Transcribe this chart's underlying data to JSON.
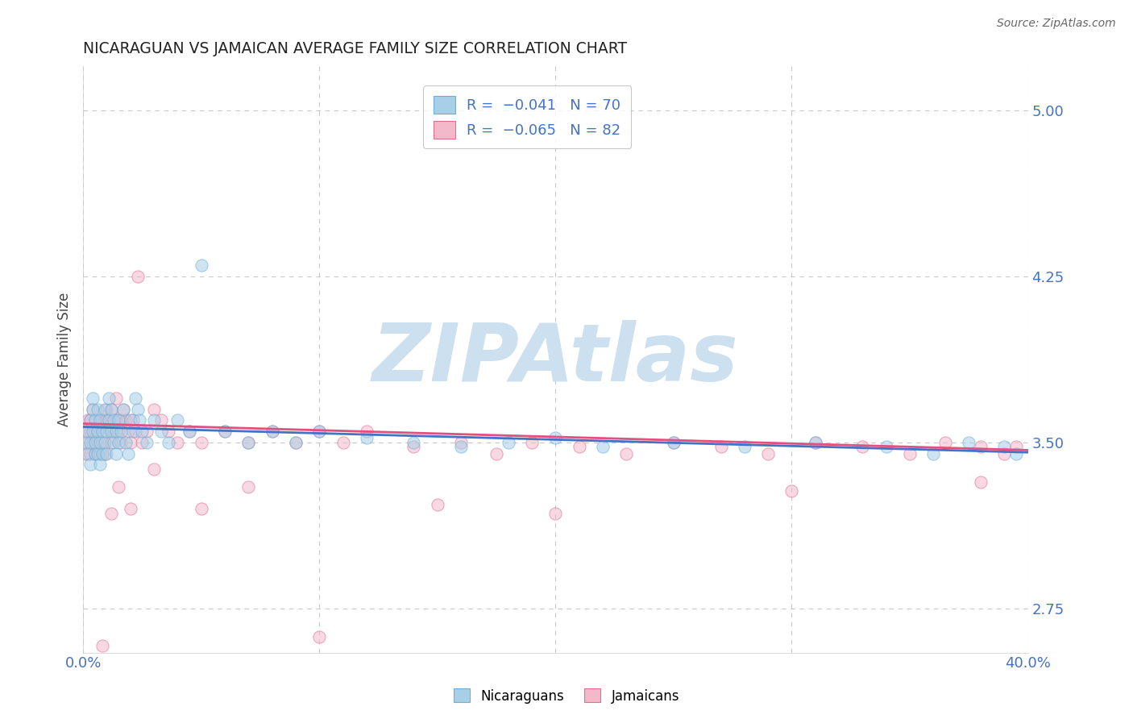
{
  "title": "NICARAGUAN VS JAMAICAN AVERAGE FAMILY SIZE CORRELATION CHART",
  "source_text": "Source: ZipAtlas.com",
  "ylabel": "Average Family Size",
  "xlim": [
    0.0,
    0.4
  ],
  "ylim": [
    2.55,
    5.2
  ],
  "yticks": [
    2.75,
    3.5,
    4.25,
    5.0
  ],
  "xticks": [
    0.0,
    0.1,
    0.2,
    0.3,
    0.4
  ],
  "xticklabels": [
    "0.0%",
    "",
    "",
    "",
    "40.0%"
  ],
  "yticklabels": [
    "2.75",
    "3.50",
    "4.25",
    "5.00"
  ],
  "nicaraguan_color": "#a8cfe8",
  "nicaraguan_edge": "#6baed6",
  "jamaican_color": "#f4b8cb",
  "jamaican_edge": "#e07090",
  "trend_nicaraguan_color": "#4472c4",
  "trend_jamaican_color": "#e05080",
  "background_color": "#ffffff",
  "grid_color": "#bbbbbb",
  "title_color": "#222222",
  "axis_label_color": "#444444",
  "tick_label_color": "#4472c4",
  "watermark": "ZIPAtlas",
  "watermark_color": "#cce0f0",
  "scatter_alpha": 0.55,
  "scatter_size": 120,
  "nicaraguan_x": [
    0.001,
    0.002,
    0.002,
    0.003,
    0.003,
    0.003,
    0.004,
    0.004,
    0.004,
    0.005,
    0.005,
    0.005,
    0.006,
    0.006,
    0.006,
    0.007,
    0.007,
    0.007,
    0.008,
    0.008,
    0.009,
    0.009,
    0.01,
    0.01,
    0.011,
    0.011,
    0.012,
    0.012,
    0.013,
    0.013,
    0.014,
    0.014,
    0.015,
    0.015,
    0.016,
    0.017,
    0.018,
    0.019,
    0.02,
    0.021,
    0.022,
    0.023,
    0.024,
    0.025,
    0.027,
    0.03,
    0.033,
    0.036,
    0.04,
    0.045,
    0.05,
    0.06,
    0.07,
    0.08,
    0.09,
    0.1,
    0.12,
    0.14,
    0.16,
    0.18,
    0.2,
    0.22,
    0.25,
    0.28,
    0.31,
    0.34,
    0.36,
    0.375,
    0.39,
    0.395
  ],
  "nicaraguan_y": [
    3.5,
    3.55,
    3.45,
    3.6,
    3.5,
    3.4,
    3.65,
    3.55,
    3.7,
    3.45,
    3.6,
    3.5,
    3.55,
    3.45,
    3.65,
    3.5,
    3.6,
    3.4,
    3.55,
    3.45,
    3.65,
    3.5,
    3.55,
    3.45,
    3.6,
    3.7,
    3.55,
    3.65,
    3.5,
    3.6,
    3.45,
    3.55,
    3.6,
    3.5,
    3.55,
    3.65,
    3.5,
    3.45,
    3.6,
    3.55,
    3.7,
    3.65,
    3.6,
    3.55,
    3.5,
    3.6,
    3.55,
    3.5,
    3.6,
    3.55,
    4.3,
    3.55,
    3.5,
    3.55,
    3.5,
    3.55,
    3.52,
    3.5,
    3.48,
    3.5,
    3.52,
    3.48,
    3.5,
    3.48,
    3.5,
    3.48,
    3.45,
    3.5,
    3.48,
    3.45
  ],
  "jamaican_x": [
    0.001,
    0.001,
    0.002,
    0.002,
    0.003,
    0.003,
    0.003,
    0.004,
    0.004,
    0.005,
    0.005,
    0.005,
    0.006,
    0.006,
    0.007,
    0.007,
    0.008,
    0.008,
    0.009,
    0.009,
    0.01,
    0.01,
    0.011,
    0.012,
    0.012,
    0.013,
    0.014,
    0.014,
    0.015,
    0.016,
    0.016,
    0.017,
    0.018,
    0.019,
    0.02,
    0.021,
    0.022,
    0.023,
    0.025,
    0.027,
    0.03,
    0.033,
    0.036,
    0.04,
    0.045,
    0.05,
    0.06,
    0.07,
    0.08,
    0.09,
    0.1,
    0.11,
    0.12,
    0.14,
    0.16,
    0.175,
    0.19,
    0.21,
    0.23,
    0.25,
    0.27,
    0.29,
    0.31,
    0.33,
    0.35,
    0.365,
    0.38,
    0.39,
    0.395,
    0.01,
    0.015,
    0.02,
    0.03,
    0.05,
    0.07,
    0.1,
    0.15,
    0.2,
    0.3,
    0.38,
    0.008,
    0.012
  ],
  "jamaican_y": [
    3.45,
    3.55,
    3.6,
    3.5,
    3.55,
    3.45,
    3.6,
    3.5,
    3.65,
    3.55,
    3.45,
    3.6,
    3.5,
    3.55,
    3.6,
    3.45,
    3.55,
    3.5,
    3.6,
    3.45,
    3.55,
    3.65,
    3.6,
    3.5,
    3.65,
    3.55,
    3.6,
    3.7,
    3.55,
    3.6,
    3.5,
    3.65,
    3.6,
    3.55,
    3.5,
    3.6,
    3.55,
    4.25,
    3.5,
    3.55,
    3.65,
    3.6,
    3.55,
    3.5,
    3.55,
    3.5,
    3.55,
    3.5,
    3.55,
    3.5,
    3.55,
    3.5,
    3.55,
    3.48,
    3.5,
    3.45,
    3.5,
    3.48,
    3.45,
    3.5,
    3.48,
    3.45,
    3.5,
    3.48,
    3.45,
    3.5,
    3.48,
    3.45,
    3.48,
    3.6,
    3.3,
    3.2,
    3.38,
    3.2,
    3.3,
    2.62,
    3.22,
    3.18,
    3.28,
    3.32,
    2.58,
    3.18
  ]
}
